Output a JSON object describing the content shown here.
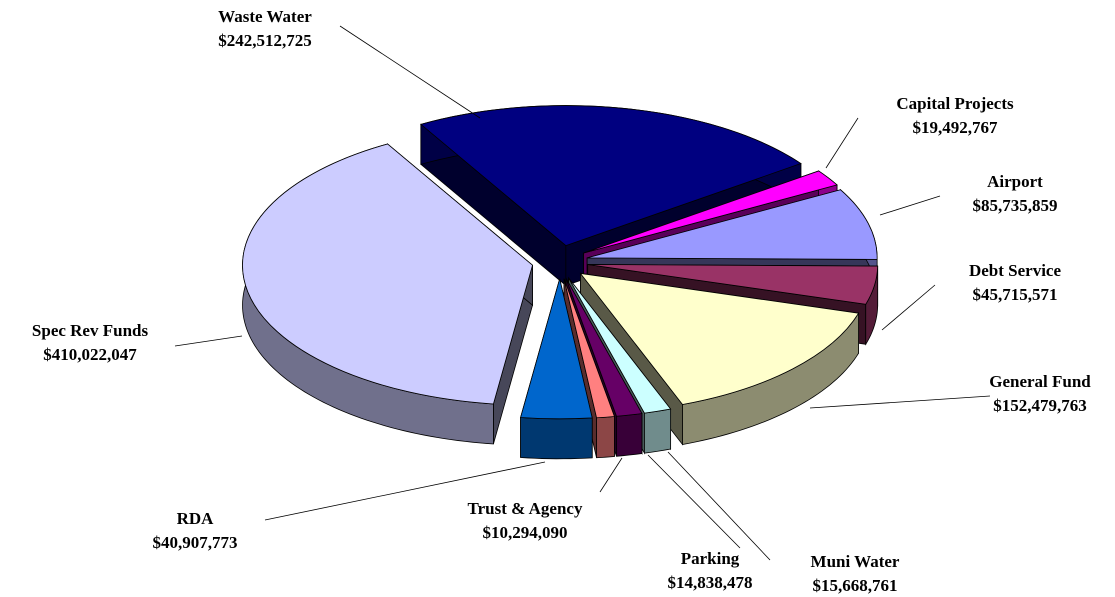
{
  "chart_data": {
    "type": "pie",
    "categories": [
      "Waste Water",
      "Capital Projects",
      "Airport",
      "Debt Service",
      "General Fund",
      "Muni Water",
      "Parking",
      "Trust & Agency",
      "RDA",
      "Spec Rev Funds"
    ],
    "values": [
      242512725,
      19492767,
      85735859,
      45715571,
      152479763,
      15668761,
      14838478,
      10294090,
      40907773,
      410022047
    ],
    "value_labels": [
      "$242,512,725",
      "$19,492,767",
      "$85,735,859",
      "$45,715,571",
      "$152,479,763",
      "$15,668,761",
      "$14,838,478",
      "$10,294,090",
      "$40,907,773",
      "$410,022,047"
    ],
    "colors": [
      "#000080",
      "#ff00ff",
      "#9999ff",
      "#993366",
      "#ffffcc",
      "#ccffff",
      "#660066",
      "#ff8080",
      "#0066cc",
      "#ccccff"
    ]
  }
}
